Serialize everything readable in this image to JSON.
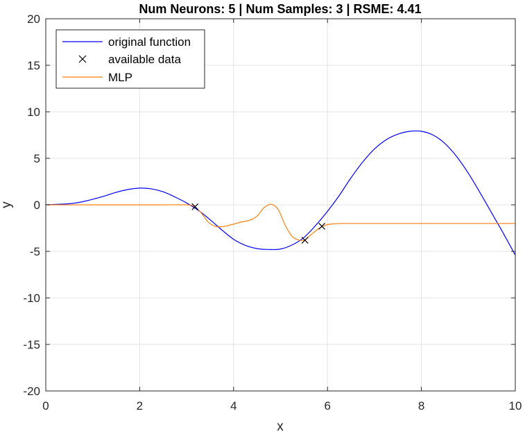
{
  "chart_data": {
    "type": "line",
    "title": "Num Neurons: 5 | Num Samples: 3 | RSME: 4.41",
    "xlabel": "x",
    "ylabel": "y",
    "xlim": [
      0,
      10
    ],
    "ylim": [
      -20,
      20
    ],
    "xticks": [
      0,
      2,
      4,
      6,
      8,
      10
    ],
    "yticks": [
      -20,
      -15,
      -10,
      -5,
      0,
      5,
      10,
      15,
      20
    ],
    "grid": true,
    "legend_position": "top-left",
    "series": [
      {
        "name": "original function",
        "style": "line",
        "color": "#0000ff",
        "x": [
          0,
          0.25,
          0.5,
          0.75,
          1,
          1.25,
          1.5,
          1.75,
          2,
          2.25,
          2.5,
          2.75,
          3,
          3.25,
          3.5,
          3.75,
          4,
          4.25,
          4.5,
          4.75,
          5,
          5.25,
          5.5,
          5.75,
          6,
          6.25,
          6.5,
          6.75,
          7,
          7.25,
          7.5,
          7.75,
          8,
          8.25,
          8.5,
          8.75,
          9,
          9.25,
          9.5,
          9.75,
          10
        ],
        "y": [
          0,
          0.06,
          0.12,
          0.3,
          0.6,
          0.95,
          1.35,
          1.65,
          1.8,
          1.72,
          1.4,
          0.85,
          0.2,
          -0.6,
          -1.6,
          -2.7,
          -3.7,
          -4.35,
          -4.7,
          -4.8,
          -4.75,
          -4.3,
          -3.5,
          -2.2,
          -0.7,
          1.0,
          2.9,
          4.6,
          6.0,
          7.0,
          7.6,
          7.9,
          7.9,
          7.5,
          6.6,
          5.2,
          3.4,
          1.3,
          -0.9,
          -3.1,
          -5.4
        ]
      },
      {
        "name": "available data",
        "style": "markers",
        "marker": "x",
        "color": "#000000",
        "x": [
          3.18,
          5.52,
          5.88
        ],
        "y": [
          -0.2,
          -3.8,
          -2.3
        ]
      },
      {
        "name": "MLP",
        "style": "line",
        "color": "#ff7f0e",
        "x": [
          0,
          1,
          2,
          2.5,
          3,
          3.15,
          3.3,
          3.45,
          3.6,
          3.75,
          3.9,
          4.05,
          4.2,
          4.35,
          4.5,
          4.65,
          4.8,
          4.95,
          5.1,
          5.25,
          5.4,
          5.52,
          5.65,
          5.8,
          5.95,
          6.1,
          6.3,
          7,
          8,
          9,
          10
        ],
        "y": [
          0,
          0,
          0,
          0,
          0,
          -0.15,
          -0.8,
          -1.8,
          -2.3,
          -2.35,
          -2.2,
          -2.0,
          -1.8,
          -1.65,
          -1.2,
          -0.3,
          0.05,
          -0.5,
          -2.2,
          -3.4,
          -3.8,
          -3.75,
          -3.2,
          -2.6,
          -2.2,
          -2.05,
          -2.0,
          -2.0,
          -2.0,
          -2.0,
          -2.0
        ]
      }
    ]
  }
}
